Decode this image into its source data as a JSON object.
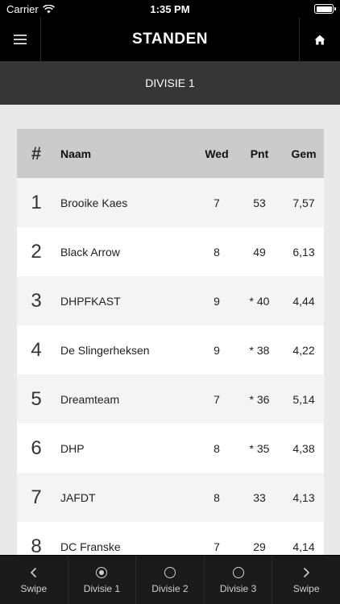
{
  "status_bar": {
    "carrier": "Carrier",
    "time": "1:35 PM"
  },
  "nav": {
    "title": "STANDEN"
  },
  "division": {
    "title": "DIVISIE 1"
  },
  "table": {
    "headers": {
      "rank": "#",
      "name": "Naam",
      "played": "Wed",
      "points": "Pnt",
      "average": "Gem"
    },
    "rows": [
      {
        "rank": "1",
        "name": "Brooike Kaes",
        "played": "7",
        "points": "53",
        "average": "7,57"
      },
      {
        "rank": "2",
        "name": "Black Arrow",
        "played": "8",
        "points": "49",
        "average": "6,13"
      },
      {
        "rank": "3",
        "name": "DHPFKAST",
        "played": "9",
        "points": "* 40",
        "average": "4,44"
      },
      {
        "rank": "4",
        "name": "De Slingerheksen",
        "played": "9",
        "points": "* 38",
        "average": "4,22"
      },
      {
        "rank": "5",
        "name": "Dreamteam",
        "played": "7",
        "points": "* 36",
        "average": "5,14"
      },
      {
        "rank": "6",
        "name": "DHP",
        "played": "8",
        "points": "* 35",
        "average": "4,38"
      },
      {
        "rank": "7",
        "name": "JAFDT",
        "played": "8",
        "points": "33",
        "average": "4,13"
      },
      {
        "rank": "8",
        "name": "DC Franske",
        "played": "7",
        "points": "29",
        "average": "4,14"
      }
    ]
  },
  "tabs": [
    {
      "label": "Swipe",
      "icon": "chevron-left-icon"
    },
    {
      "label": "Divisie 1",
      "icon": "radio-selected-icon"
    },
    {
      "label": "Divisie 2",
      "icon": "radio-icon"
    },
    {
      "label": "Divisie 3",
      "icon": "radio-icon"
    },
    {
      "label": "Swipe",
      "icon": "chevron-right-icon"
    }
  ]
}
